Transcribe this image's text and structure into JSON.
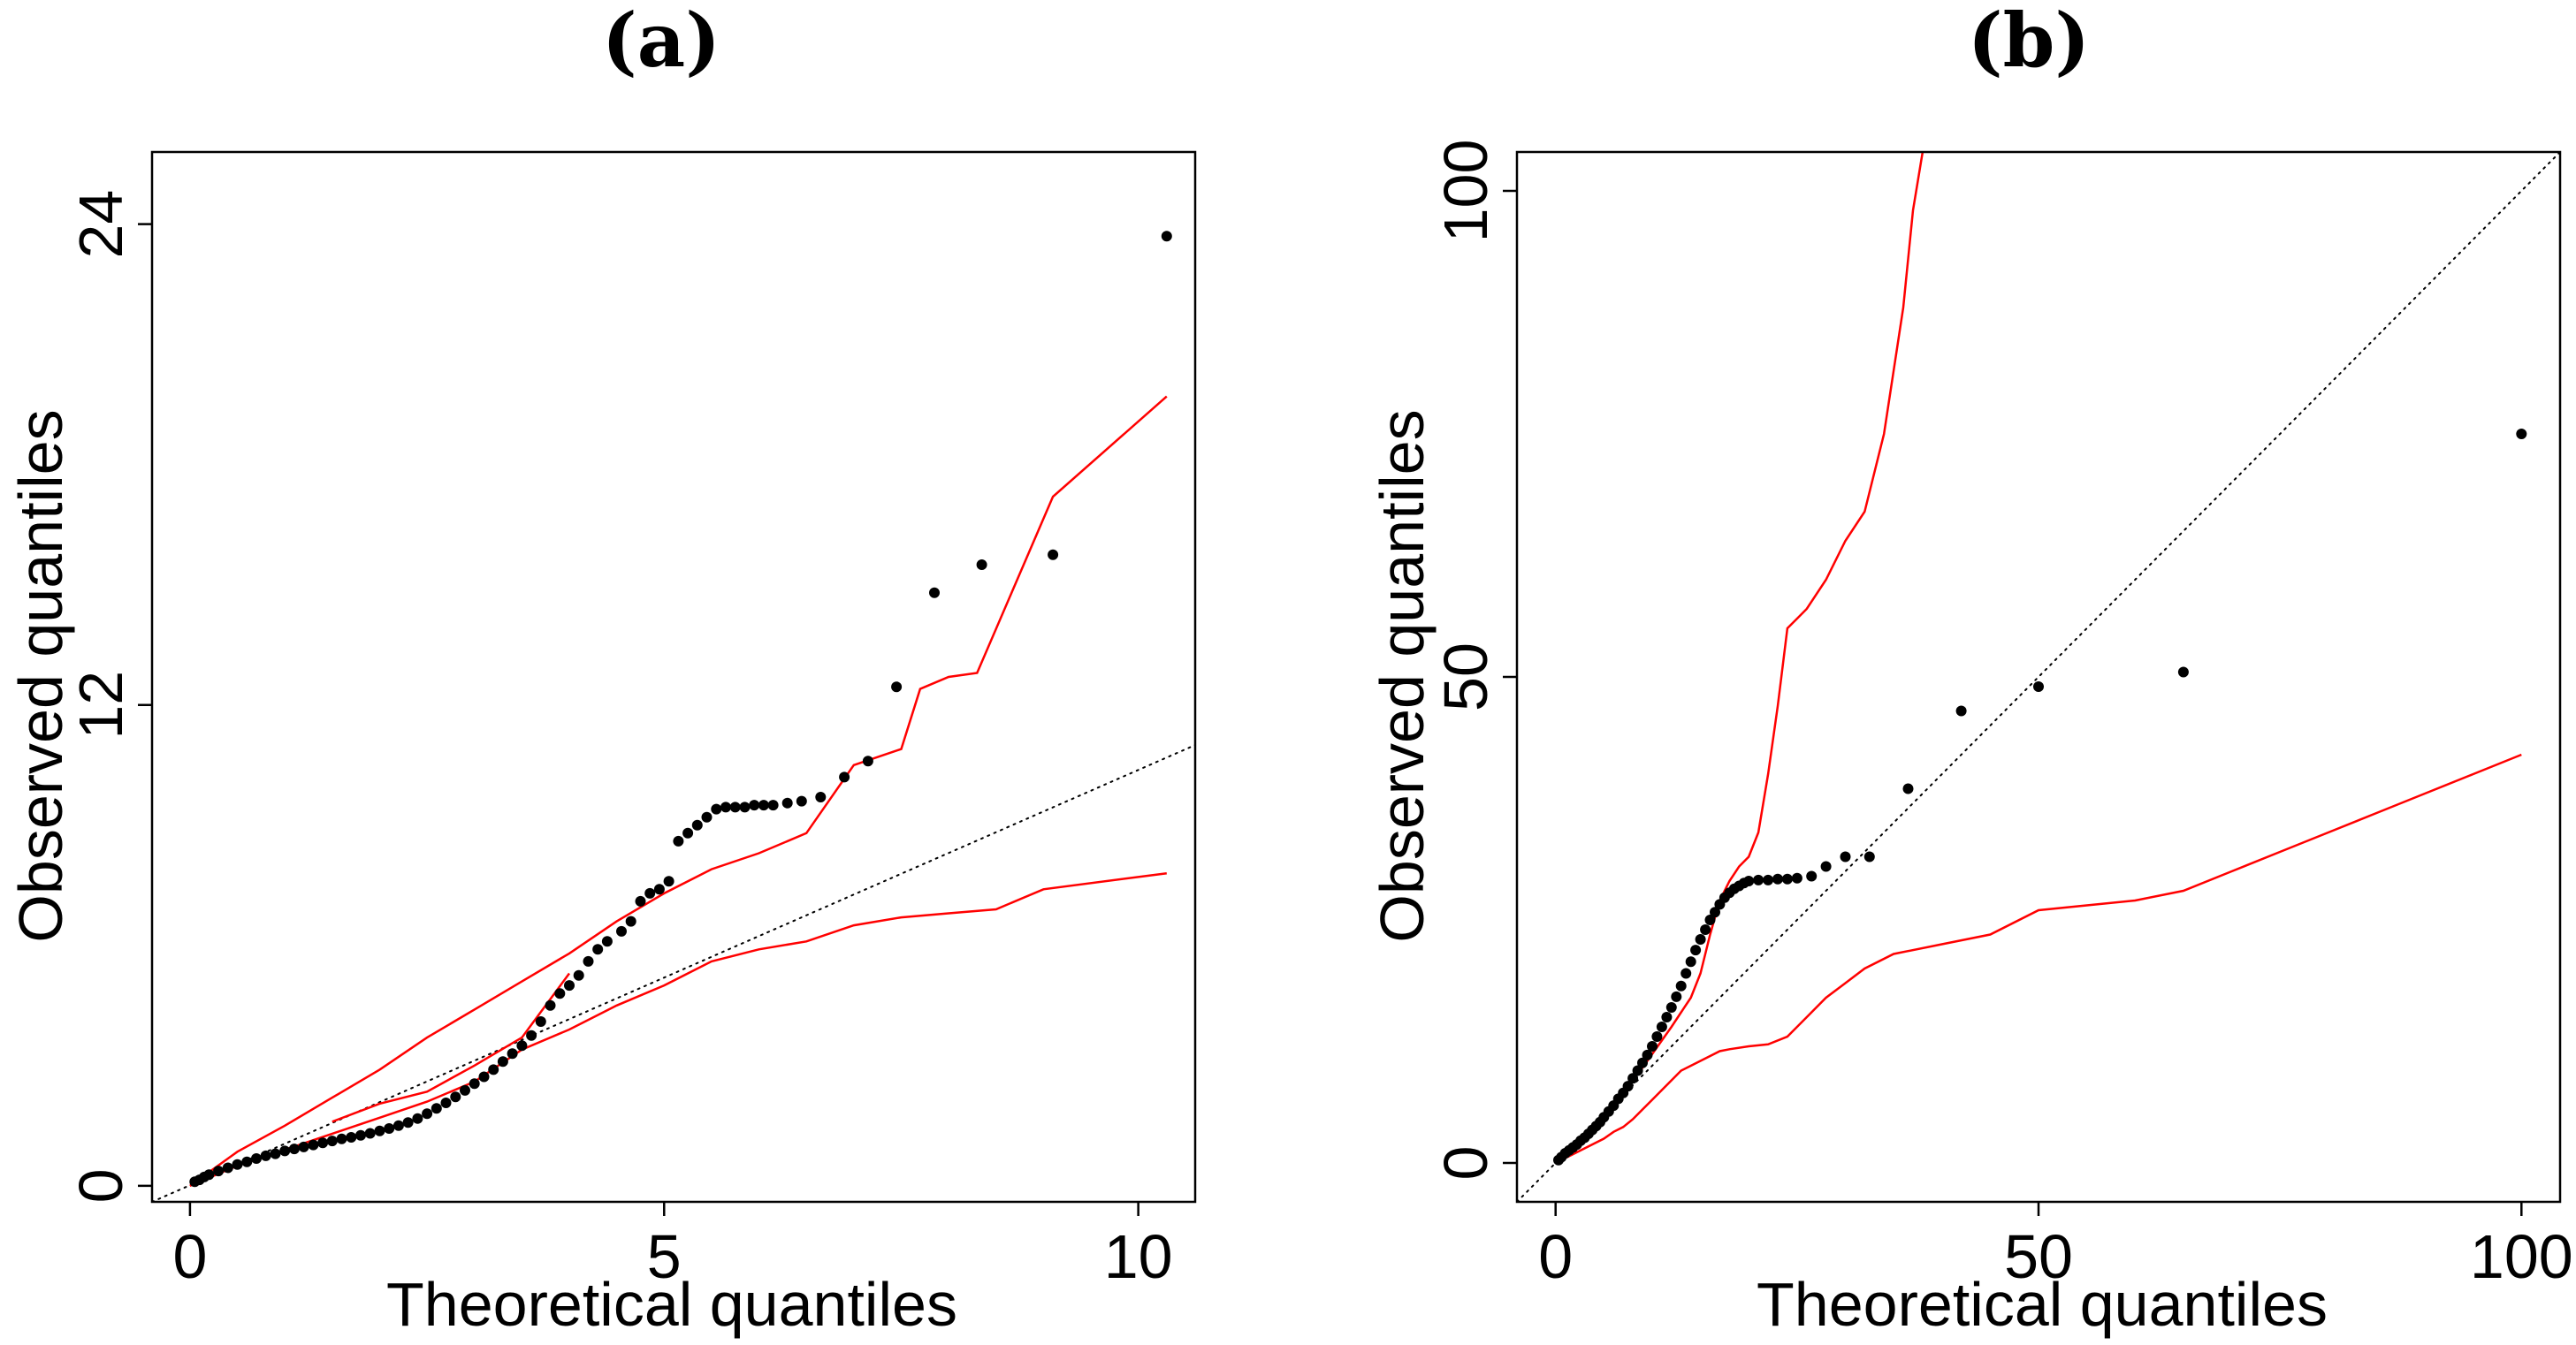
{
  "chart_data": [
    {
      "type": "scatter",
      "title": "(a)",
      "xlabel": "Theoretical quantiles",
      "ylabel": "Observed quantiles",
      "xlim": [
        -0.4,
        10.6
      ],
      "ylim": [
        -0.4,
        25.8
      ],
      "xticks": [
        0,
        5,
        10
      ],
      "yticks": [
        0,
        12,
        24
      ],
      "reference_line": {
        "from": [
          -0.4,
          -0.4
        ],
        "to": [
          10.6,
          11.0
        ]
      },
      "envelope_upper": [
        [
          0,
          0
        ],
        [
          0.5,
          0.85
        ],
        [
          1,
          1.5
        ],
        [
          1.5,
          2.2
        ],
        [
          2,
          2.9
        ],
        [
          2.5,
          3.7
        ],
        [
          3,
          4.4
        ],
        [
          3.5,
          5.1
        ],
        [
          4,
          5.8
        ],
        [
          4.5,
          6.6
        ],
        [
          5,
          7.3
        ],
        [
          5.5,
          7.9
        ],
        [
          6,
          8.3
        ],
        [
          6.5,
          8.8
        ],
        [
          7,
          10.5
        ],
        [
          7.5,
          10.9
        ],
        [
          7.7,
          12.4
        ],
        [
          8,
          12.7
        ],
        [
          8.3,
          12.8
        ],
        [
          9.1,
          17.2
        ],
        [
          10.3,
          19.7
        ]
      ],
      "envelope_lower": [
        [
          0,
          0
        ],
        [
          0.5,
          0.5
        ],
        [
          1,
          0.9
        ],
        [
          1.5,
          1.3
        ],
        [
          2,
          1.7
        ],
        [
          2.5,
          2.1
        ],
        [
          3,
          2.6
        ],
        [
          3.5,
          3.4
        ],
        [
          4,
          3.9
        ],
        [
          4.5,
          4.5
        ],
        [
          5,
          5.0
        ],
        [
          5.5,
          5.6
        ],
        [
          6,
          5.9
        ],
        [
          6.5,
          6.1
        ],
        [
          7,
          6.5
        ],
        [
          7.5,
          6.7
        ],
        [
          8,
          6.8
        ],
        [
          8.5,
          6.9
        ],
        [
          9,
          7.4
        ],
        [
          10.3,
          7.8
        ]
      ],
      "envelope_inner": [
        [
          1.5,
          1.6
        ],
        [
          2,
          2.05
        ],
        [
          2.5,
          2.35
        ],
        [
          3,
          3.0
        ],
        [
          3.5,
          3.7
        ],
        [
          4,
          5.3
        ]
      ],
      "points": [
        [
          0.05,
          0.1
        ],
        [
          0.1,
          0.15
        ],
        [
          0.15,
          0.22
        ],
        [
          0.2,
          0.28
        ],
        [
          0.3,
          0.37
        ],
        [
          0.4,
          0.45
        ],
        [
          0.5,
          0.53
        ],
        [
          0.6,
          0.6
        ],
        [
          0.7,
          0.68
        ],
        [
          0.8,
          0.75
        ],
        [
          0.9,
          0.8
        ],
        [
          1.0,
          0.87
        ],
        [
          1.1,
          0.92
        ],
        [
          1.2,
          0.97
        ],
        [
          1.3,
          1.02
        ],
        [
          1.4,
          1.07
        ],
        [
          1.5,
          1.12
        ],
        [
          1.6,
          1.17
        ],
        [
          1.7,
          1.21
        ],
        [
          1.8,
          1.26
        ],
        [
          1.9,
          1.31
        ],
        [
          2.0,
          1.37
        ],
        [
          2.1,
          1.43
        ],
        [
          2.2,
          1.5
        ],
        [
          2.3,
          1.58
        ],
        [
          2.4,
          1.68
        ],
        [
          2.5,
          1.8
        ],
        [
          2.6,
          1.93
        ],
        [
          2.7,
          2.07
        ],
        [
          2.8,
          2.22
        ],
        [
          2.9,
          2.38
        ],
        [
          3.0,
          2.55
        ],
        [
          3.1,
          2.72
        ],
        [
          3.2,
          2.9
        ],
        [
          3.3,
          3.1
        ],
        [
          3.4,
          3.3
        ],
        [
          3.5,
          3.5
        ],
        [
          3.6,
          3.75
        ],
        [
          3.7,
          4.1
        ],
        [
          3.8,
          4.5
        ],
        [
          3.9,
          4.8
        ],
        [
          4.0,
          5.0
        ],
        [
          4.1,
          5.25
        ],
        [
          4.2,
          5.6
        ],
        [
          4.3,
          5.9
        ],
        [
          4.4,
          6.1
        ],
        [
          4.55,
          6.35
        ],
        [
          4.65,
          6.6
        ],
        [
          4.75,
          7.1
        ],
        [
          4.85,
          7.3
        ],
        [
          4.95,
          7.4
        ],
        [
          5.05,
          7.6
        ],
        [
          5.15,
          8.6
        ],
        [
          5.25,
          8.8
        ],
        [
          5.35,
          9.0
        ],
        [
          5.45,
          9.2
        ],
        [
          5.55,
          9.4
        ],
        [
          5.65,
          9.45
        ],
        [
          5.75,
          9.45
        ],
        [
          5.85,
          9.45
        ],
        [
          5.95,
          9.5
        ],
        [
          6.05,
          9.5
        ],
        [
          6.15,
          9.5
        ],
        [
          6.3,
          9.55
        ],
        [
          6.45,
          9.6
        ],
        [
          6.65,
          9.7
        ],
        [
          6.9,
          10.2
        ],
        [
          7.15,
          10.6
        ],
        [
          7.45,
          12.45
        ],
        [
          7.85,
          14.8
        ],
        [
          8.35,
          15.5
        ],
        [
          9.1,
          15.75
        ],
        [
          10.3,
          23.7
        ]
      ]
    },
    {
      "type": "scatter",
      "title": "(b)",
      "xlabel": "Theoretical quantiles",
      "ylabel": "Observed quantiles",
      "xlim": [
        -4,
        104
      ],
      "ylim": [
        -4,
        104
      ],
      "xticks": [
        0,
        50,
        100
      ],
      "yticks": [
        0,
        50,
        100
      ],
      "reference_line": {
        "from": [
          -4,
          -4
        ],
        "to": [
          104,
          104
        ]
      },
      "envelope_upper": [
        [
          0,
          0
        ],
        [
          1,
          0.8
        ],
        [
          2,
          1.5
        ],
        [
          3,
          2.5
        ],
        [
          4,
          3.6
        ],
        [
          5,
          4.8
        ],
        [
          6,
          6.0
        ],
        [
          7,
          7.2
        ],
        [
          8,
          8.5
        ],
        [
          9,
          9.8
        ],
        [
          10,
          11.2
        ],
        [
          11,
          12.6
        ],
        [
          12,
          14.0
        ],
        [
          13,
          15.5
        ],
        [
          14,
          17.0
        ],
        [
          15,
          19.5
        ],
        [
          16,
          23.5
        ],
        [
          17,
          27.0
        ],
        [
          18,
          29.0
        ],
        [
          19,
          30.5
        ],
        [
          20,
          31.5
        ],
        [
          21,
          34.0
        ],
        [
          22,
          40.0
        ],
        [
          23,
          47.0
        ],
        [
          24,
          55.0
        ],
        [
          25,
          56.0
        ],
        [
          26,
          57.0
        ],
        [
          28,
          60.0
        ],
        [
          30,
          64.0
        ],
        [
          32,
          67.0
        ],
        [
          34,
          75.0
        ],
        [
          36,
          88.0
        ],
        [
          37,
          98.0
        ],
        [
          38,
          104
        ]
      ],
      "envelope_lower": [
        [
          0,
          0
        ],
        [
          1,
          0.5
        ],
        [
          2,
          1.0
        ],
        [
          3,
          1.5
        ],
        [
          4,
          2.0
        ],
        [
          5,
          2.5
        ],
        [
          6,
          3.2
        ],
        [
          7,
          3.7
        ],
        [
          8,
          4.5
        ],
        [
          9,
          5.5
        ],
        [
          10,
          6.5
        ],
        [
          11,
          7.5
        ],
        [
          12,
          8.5
        ],
        [
          13,
          9.5
        ],
        [
          14,
          10.0
        ],
        [
          15,
          10.5
        ],
        [
          16,
          11.0
        ],
        [
          17,
          11.5
        ],
        [
          18,
          11.7
        ],
        [
          20,
          12.0
        ],
        [
          22,
          12.2
        ],
        [
          24,
          13.0
        ],
        [
          26,
          15.0
        ],
        [
          28,
          17.0
        ],
        [
          30,
          18.5
        ],
        [
          32,
          20.0
        ],
        [
          35,
          21.5
        ],
        [
          40,
          22.5
        ],
        [
          45,
          23.5
        ],
        [
          50,
          26.0
        ],
        [
          55,
          26.5
        ],
        [
          60,
          27.0
        ],
        [
          65,
          28.0
        ],
        [
          70,
          30.0
        ],
        [
          75,
          32.0
        ],
        [
          80,
          34.0
        ],
        [
          85,
          36.0
        ],
        [
          90,
          38.0
        ],
        [
          95,
          40.0
        ],
        [
          100,
          42.0
        ]
      ],
      "points": [
        [
          0.3,
          0.3
        ],
        [
          0.6,
          0.6
        ],
        [
          1.0,
          1.0
        ],
        [
          1.4,
          1.3
        ],
        [
          1.8,
          1.6
        ],
        [
          2.2,
          1.9
        ],
        [
          2.6,
          2.3
        ],
        [
          3.0,
          2.6
        ],
        [
          3.4,
          3.0
        ],
        [
          3.8,
          3.4
        ],
        [
          4.2,
          3.8
        ],
        [
          4.6,
          4.2
        ],
        [
          5.0,
          4.7
        ],
        [
          5.5,
          5.3
        ],
        [
          6.0,
          5.9
        ],
        [
          6.5,
          6.6
        ],
        [
          7.0,
          7.2
        ],
        [
          7.5,
          7.9
        ],
        [
          8.0,
          8.7
        ],
        [
          8.5,
          9.5
        ],
        [
          9.0,
          10.3
        ],
        [
          9.5,
          11.1
        ],
        [
          10.0,
          12.0
        ],
        [
          10.5,
          13.0
        ],
        [
          11.0,
          14.0
        ],
        [
          11.5,
          15.0
        ],
        [
          12.0,
          16.0
        ],
        [
          12.5,
          17.1
        ],
        [
          13.0,
          18.2
        ],
        [
          13.5,
          19.5
        ],
        [
          14.0,
          20.7
        ],
        [
          14.5,
          21.9
        ],
        [
          15.0,
          23.0
        ],
        [
          15.5,
          24.0
        ],
        [
          16.0,
          25.0
        ],
        [
          16.5,
          25.8
        ],
        [
          17.0,
          26.6
        ],
        [
          17.5,
          27.3
        ],
        [
          18.0,
          27.8
        ],
        [
          18.5,
          28.2
        ],
        [
          19.0,
          28.5
        ],
        [
          19.5,
          28.8
        ],
        [
          20.0,
          29.0
        ],
        [
          21.0,
          29.1
        ],
        [
          22.0,
          29.1
        ],
        [
          23.0,
          29.2
        ],
        [
          24.0,
          29.2
        ],
        [
          25.0,
          29.3
        ],
        [
          26.5,
          29.5
        ],
        [
          28.0,
          30.5
        ],
        [
          30.0,
          31.5
        ],
        [
          32.5,
          31.5
        ],
        [
          36.5,
          38.5
        ],
        [
          42.0,
          46.5
        ],
        [
          50.0,
          49.0
        ],
        [
          65.0,
          50.5
        ],
        [
          100.0,
          75.0
        ]
      ]
    }
  ]
}
